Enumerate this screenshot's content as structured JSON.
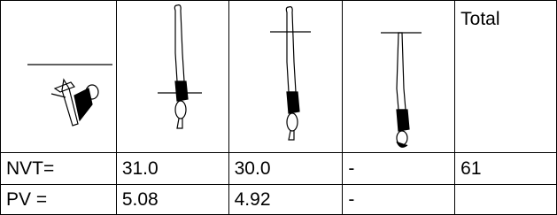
{
  "header": {
    "total": "Total"
  },
  "rows": [
    [
      "NVT=",
      "31.0",
      "30.0",
      "-",
      "61"
    ],
    [
      "PV =",
      "5.08",
      "4.92",
      "-"
    ]
  ]
}
